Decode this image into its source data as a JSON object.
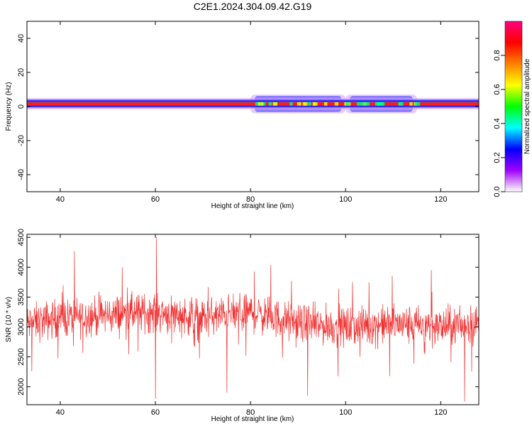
{
  "figure_title": "C2E1.2024.304.09.42.G19",
  "chart_data": [
    {
      "type": "heatmap",
      "xlabel": "Height of straight line (km)",
      "ylabel": "Frequency (Hz)",
      "xlim": [
        33,
        128
      ],
      "ylim": [
        -50,
        50
      ],
      "xticks": [
        40,
        60,
        80,
        100,
        120
      ],
      "yticks": [
        -40,
        -20,
        0,
        20,
        40
      ],
      "grid": false,
      "colorbar": {
        "label": "Normalized spectral amplitude",
        "range": [
          0,
          1
        ],
        "ticks": [
          0.0,
          0.2,
          0.4,
          0.6,
          0.8
        ],
        "colormap": "hsv-rainbow",
        "colors": [
          "#ffffff",
          "#a000ff",
          "#0000ff",
          "#00ffff",
          "#00ff00",
          "#ffff00",
          "#ff8000",
          "#ff0000",
          "#ff0080"
        ]
      },
      "band": {
        "center_hz": 1.5,
        "core_halfwidth_hz": 1.0,
        "outer_halfwidth_hz": 4.0,
        "broadening_regions_km": [
          [
            80,
            100
          ],
          [
            100,
            115
          ]
        ],
        "broadened_halfwidth_hz": 5.5
      }
    },
    {
      "type": "line",
      "xlabel": "Height of straight line (km)",
      "ylabel": "SNR (10 * v/v)",
      "xlim": [
        33,
        128
      ],
      "ylim": [
        1700,
        4550
      ],
      "xticks": [
        40,
        60,
        80,
        100,
        120
      ],
      "yticks": [
        2000,
        2500,
        3000,
        3500,
        4000,
        4500
      ],
      "grid": false,
      "series_color": "#f03232",
      "trend": {
        "x": [
          33,
          40,
          50,
          60,
          70,
          80,
          90,
          100,
          110,
          120,
          128
        ],
        "y": [
          3050,
          3150,
          3200,
          3250,
          3150,
          3250,
          3050,
          3000,
          3050,
          3000,
          3050
        ]
      },
      "noise_amplitude": 300,
      "min_points": [
        [
          60,
          1800
        ],
        [
          75,
          1900
        ],
        [
          92,
          1850
        ],
        [
          125,
          1750
        ]
      ],
      "max_points": [
        [
          60.2,
          4500
        ],
        [
          118,
          3950
        ],
        [
          53,
          4000
        ]
      ]
    }
  ]
}
